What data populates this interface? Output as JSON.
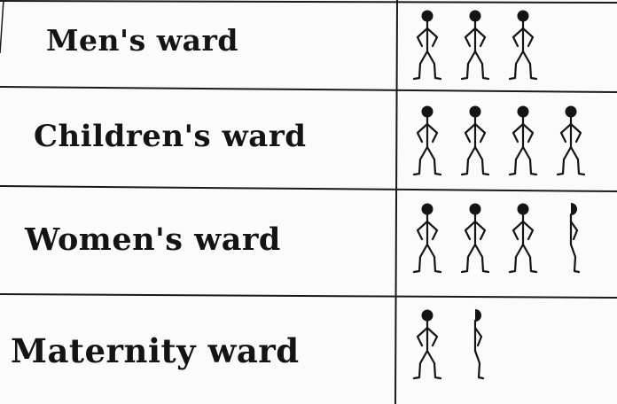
{
  "chart_data": {
    "type": "pictogram",
    "categories": [
      "Men's ward",
      "Children's ward",
      "Women's ward",
      "Maternity ward"
    ],
    "values": [
      3,
      4,
      3.5,
      1.5
    ],
    "rows": [
      {
        "label": "Men's ward",
        "figures": [
          1,
          1,
          1
        ]
      },
      {
        "label": "Children's ward",
        "figures": [
          1,
          1,
          1,
          1
        ]
      },
      {
        "label": "Women's ward",
        "figures": [
          1,
          1,
          1,
          0.5
        ]
      },
      {
        "label": "Maternity ward",
        "figures": [
          1,
          0.5
        ]
      }
    ],
    "icon": "stick-figure-person-icon",
    "colors": {
      "ink": "#141414",
      "paper": "#fbfbfb"
    }
  }
}
